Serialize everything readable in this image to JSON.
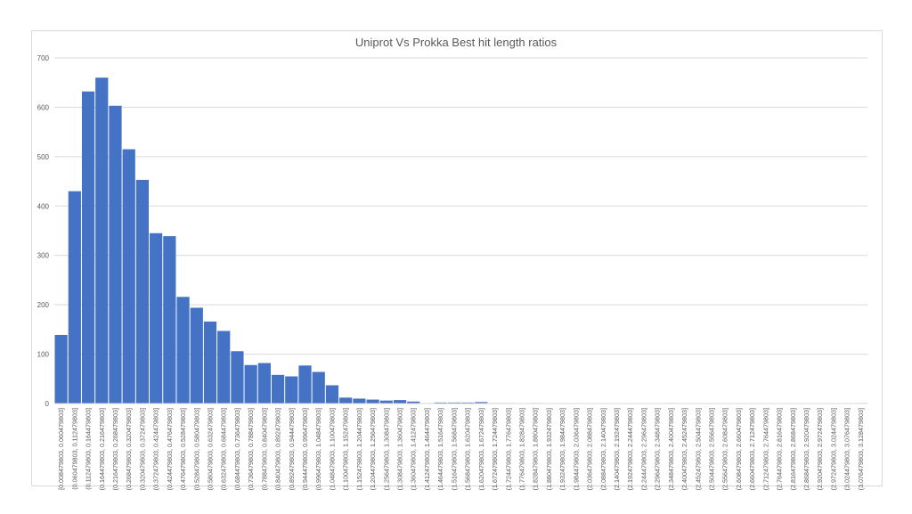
{
  "chart_data": {
    "type": "bar",
    "title": "Uniprot Vs Prokka Best hit length ratios",
    "xlabel": "",
    "ylabel": "",
    "ylim": [
      0,
      700
    ],
    "yticks": [
      0,
      100,
      200,
      300,
      400,
      500,
      600,
      700
    ],
    "grid": true,
    "legend": "none",
    "bar_color": "#4472C4",
    "categories": [
      "[0.008479803, 0.060479803]",
      "(0.060479803, 0.112479803]",
      "(0.112479803, 0.164479803]",
      "(0.164479803, 0.216479803]",
      "(0.216479803, 0.268479803]",
      "(0.268479803, 0.320479803]",
      "(0.320479803, 0.372479803]",
      "(0.372479803, 0.424479803]",
      "(0.424479803, 0.476479803]",
      "(0.476479803, 0.528479803]",
      "(0.528479803, 0.580479803]",
      "(0.580479803, 0.632479803]",
      "(0.632479803, 0.684479803]",
      "(0.684479803, 0.736479803]",
      "(0.736479803, 0.788479803]",
      "(0.788479803, 0.840479803]",
      "(0.840479803, 0.892479803]",
      "(0.892479803, 0.944479803]",
      "(0.944479803, 0.996479803]",
      "(0.996479803, 1.048479803]",
      "(1.048479803, 1.100479803]",
      "(1.100479803, 1.152479803]",
      "(1.152479803, 1.204479803]",
      "(1.204479803, 1.256479803]",
      "(1.256479803, 1.308479803]",
      "(1.308479803, 1.360479803]",
      "(1.360479803, 1.412479803]",
      "(1.412479803, 1.464479803]",
      "(1.464479803, 1.516479803]",
      "(1.516479803, 1.568479803]",
      "(1.568479803, 1.620479803]",
      "(1.620479803, 1.672479803]",
      "(1.672479803, 1.724479803]",
      "(1.724479803, 1.776479803]",
      "(1.776479803, 1.828479803]",
      "(1.828479803, 1.880479803]",
      "(1.880479803, 1.932479803]",
      "(1.932479803, 1.984479803]",
      "(1.984479803, 2.036479803]",
      "(2.036479803, 2.088479803]",
      "(2.088479803, 2.140479803]",
      "(2.140479803, 2.192479803]",
      "(2.192479803, 2.244479803]",
      "(2.244479803, 2.296479803]",
      "(2.296479803, 2.348479803]",
      "(2.348479803, 2.400479803]",
      "(2.400479803, 2.452479803]",
      "(2.452479803, 2.504479803]",
      "(2.504479803, 2.556479803]",
      "(2.556479803, 2.608479803]",
      "(2.608479803, 2.660479803]",
      "(2.660479803, 2.712479803]",
      "(2.712479803, 2.764479803]",
      "(2.764479803, 2.816479803]",
      "(2.816479803, 2.868479803]",
      "(2.868479803, 2.920479803]",
      "(2.920479803, 2.972479803]",
      "(2.972479803, 3.024479803]",
      "(3.024479803, 3.076479803]",
      "(3.076479803, 3.128479803]"
    ],
    "values": [
      139,
      430,
      632,
      660,
      603,
      515,
      453,
      345,
      339,
      216,
      194,
      166,
      147,
      106,
      78,
      82,
      58,
      55,
      77,
      64,
      37,
      12,
      10,
      8,
      6,
      7,
      4,
      1,
      2,
      2,
      2,
      3,
      1,
      1,
      0,
      1,
      0,
      0,
      0,
      0,
      0,
      0,
      0,
      0,
      0,
      1,
      0,
      0,
      0,
      0,
      0,
      0,
      0,
      0,
      0,
      0,
      0,
      0,
      0,
      1
    ]
  }
}
